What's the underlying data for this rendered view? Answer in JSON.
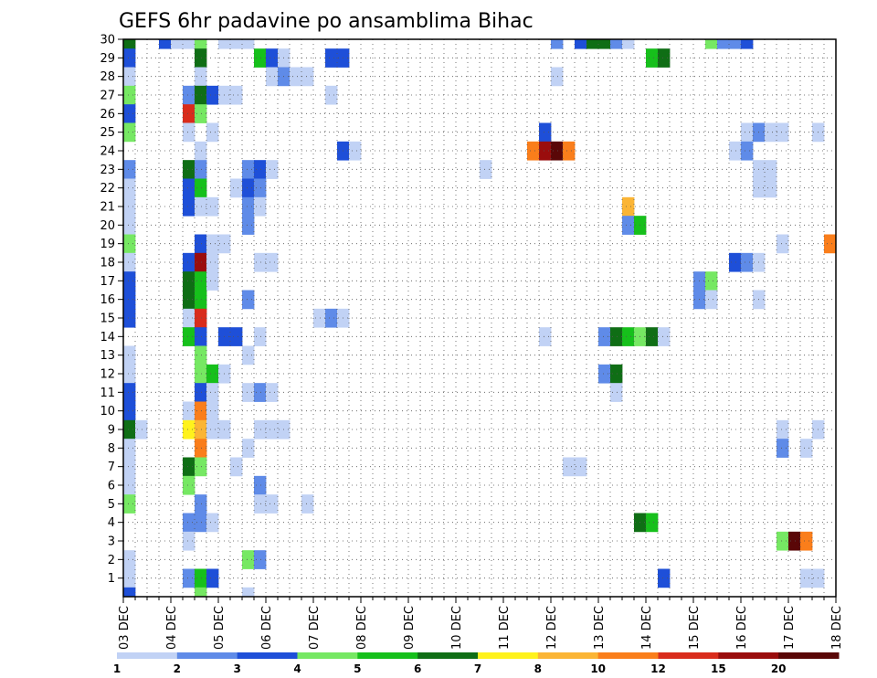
{
  "chart_data": {
    "type": "heatmap",
    "title": "GEFS 6hr padavine po ansamblima Bihac",
    "xlabel": "",
    "ylabel": "",
    "x_ticks": [
      "03 DEC",
      "04 DEC",
      "05 DEC",
      "06 DEC",
      "07 DEC",
      "08 DEC",
      "09 DEC",
      "10 DEC",
      "11 DEC",
      "12 DEC",
      "13 DEC",
      "14 DEC",
      "15 DEC",
      "16 DEC",
      "17 DEC",
      "18 DEC"
    ],
    "x_steps_per_day": 4,
    "y_ticks": [
      1,
      2,
      3,
      4,
      5,
      6,
      7,
      8,
      9,
      10,
      11,
      12,
      13,
      14,
      15,
      16,
      17,
      18,
      19,
      20,
      21,
      22,
      23,
      24,
      25,
      26,
      27,
      28,
      29,
      30
    ],
    "ylim": [
      0,
      30
    ],
    "grid": true,
    "colorbar": {
      "labels": [
        "1",
        "2",
        "3",
        "4",
        "5",
        "6",
        "7",
        "8",
        "10",
        "12",
        "15",
        "20"
      ],
      "colors": [
        "#c1d2f5",
        "#5f8be8",
        "#1e4fd8",
        "#76e863",
        "#16c01b",
        "#0f6e15",
        "#fff21c",
        "#fbb535",
        "#fa7e1b",
        "#d92c1c",
        "#9a0d0d",
        "#5a0707"
      ]
    },
    "values_note": "cells: [member, time_step_from_03DEC00, color_class_index(0-11)]",
    "cells": [
      [
        30,
        0,
        5
      ],
      [
        30,
        3,
        2
      ],
      [
        30,
        4,
        0
      ],
      [
        30,
        5,
        0
      ],
      [
        30,
        6,
        3
      ],
      [
        30,
        8,
        0
      ],
      [
        30,
        9,
        0
      ],
      [
        30,
        10,
        0
      ],
      [
        30,
        36,
        1
      ],
      [
        30,
        38,
        2
      ],
      [
        30,
        39,
        5
      ],
      [
        30,
        40,
        5
      ],
      [
        30,
        41,
        1
      ],
      [
        30,
        42,
        0
      ],
      [
        30,
        49,
        3
      ],
      [
        30,
        50,
        1
      ],
      [
        30,
        51,
        1
      ],
      [
        30,
        52,
        2
      ],
      [
        29,
        0,
        2
      ],
      [
        29,
        6,
        5
      ],
      [
        29,
        11,
        4
      ],
      [
        29,
        12,
        2
      ],
      [
        29,
        13,
        0
      ],
      [
        29,
        17,
        2
      ],
      [
        29,
        18,
        2
      ],
      [
        29,
        44,
        4
      ],
      [
        29,
        45,
        5
      ],
      [
        28,
        0,
        0
      ],
      [
        28,
        6,
        0
      ],
      [
        28,
        12,
        0
      ],
      [
        28,
        13,
        1
      ],
      [
        28,
        14,
        0
      ],
      [
        28,
        15,
        0
      ],
      [
        28,
        36,
        0
      ],
      [
        27,
        0,
        3
      ],
      [
        27,
        5,
        1
      ],
      [
        27,
        6,
        5
      ],
      [
        27,
        7,
        2
      ],
      [
        27,
        8,
        0
      ],
      [
        27,
        9,
        0
      ],
      [
        27,
        17,
        0
      ],
      [
        26,
        0,
        2
      ],
      [
        26,
        5,
        9
      ],
      [
        26,
        6,
        3
      ],
      [
        25,
        0,
        3
      ],
      [
        25,
        5,
        0
      ],
      [
        25,
        7,
        0
      ],
      [
        25,
        35,
        2
      ],
      [
        25,
        52,
        0
      ],
      [
        25,
        53,
        1
      ],
      [
        25,
        54,
        0
      ],
      [
        25,
        55,
        0
      ],
      [
        25,
        58,
        0
      ],
      [
        24,
        6,
        0
      ],
      [
        24,
        18,
        2
      ],
      [
        24,
        19,
        0
      ],
      [
        24,
        34,
        8
      ],
      [
        24,
        35,
        10
      ],
      [
        24,
        36,
        11
      ],
      [
        24,
        37,
        8
      ],
      [
        24,
        51,
        0
      ],
      [
        24,
        52,
        1
      ],
      [
        23,
        0,
        1
      ],
      [
        23,
        5,
        5
      ],
      [
        23,
        6,
        1
      ],
      [
        23,
        10,
        1
      ],
      [
        23,
        11,
        2
      ],
      [
        23,
        12,
        0
      ],
      [
        23,
        30,
        0
      ],
      [
        23,
        53,
        0
      ],
      [
        23,
        54,
        0
      ],
      [
        22,
        0,
        0
      ],
      [
        22,
        5,
        2
      ],
      [
        22,
        6,
        4
      ],
      [
        22,
        9,
        0
      ],
      [
        22,
        10,
        2
      ],
      [
        22,
        11,
        1
      ],
      [
        22,
        53,
        0
      ],
      [
        22,
        54,
        0
      ],
      [
        21,
        0,
        0
      ],
      [
        21,
        5,
        2
      ],
      [
        21,
        6,
        0
      ],
      [
        21,
        7,
        0
      ],
      [
        21,
        10,
        1
      ],
      [
        21,
        11,
        0
      ],
      [
        21,
        42,
        7
      ],
      [
        20,
        0,
        0
      ],
      [
        20,
        10,
        1
      ],
      [
        20,
        42,
        1
      ],
      [
        20,
        43,
        4
      ],
      [
        19,
        0,
        3
      ],
      [
        19,
        6,
        2
      ],
      [
        19,
        7,
        0
      ],
      [
        19,
        8,
        0
      ],
      [
        19,
        55,
        0
      ],
      [
        19,
        59,
        8
      ],
      [
        18,
        0,
        0
      ],
      [
        18,
        5,
        2
      ],
      [
        18,
        6,
        10
      ],
      [
        18,
        7,
        0
      ],
      [
        18,
        11,
        0
      ],
      [
        18,
        12,
        0
      ],
      [
        18,
        51,
        2
      ],
      [
        18,
        52,
        1
      ],
      [
        18,
        53,
        0
      ],
      [
        17,
        0,
        2
      ],
      [
        17,
        5,
        5
      ],
      [
        17,
        6,
        4
      ],
      [
        17,
        7,
        0
      ],
      [
        17,
        48,
        1
      ],
      [
        17,
        49,
        3
      ],
      [
        16,
        0,
        2
      ],
      [
        16,
        5,
        5
      ],
      [
        16,
        6,
        4
      ],
      [
        16,
        10,
        1
      ],
      [
        16,
        48,
        1
      ],
      [
        16,
        49,
        0
      ],
      [
        16,
        53,
        0
      ],
      [
        15,
        0,
        2
      ],
      [
        15,
        5,
        0
      ],
      [
        15,
        6,
        9
      ],
      [
        15,
        16,
        0
      ],
      [
        15,
        17,
        1
      ],
      [
        15,
        18,
        0
      ],
      [
        14,
        5,
        4
      ],
      [
        14,
        6,
        2
      ],
      [
        14,
        8,
        2
      ],
      [
        14,
        9,
        2
      ],
      [
        14,
        11,
        0
      ],
      [
        14,
        35,
        0
      ],
      [
        14,
        40,
        1
      ],
      [
        14,
        41,
        5
      ],
      [
        14,
        42,
        4
      ],
      [
        14,
        43,
        3
      ],
      [
        14,
        44,
        5
      ],
      [
        14,
        45,
        0
      ],
      [
        13,
        0,
        0
      ],
      [
        13,
        6,
        3
      ],
      [
        13,
        10,
        0
      ],
      [
        12,
        0,
        0
      ],
      [
        12,
        6,
        3
      ],
      [
        12,
        7,
        4
      ],
      [
        12,
        8,
        0
      ],
      [
        12,
        40,
        1
      ],
      [
        12,
        41,
        5
      ],
      [
        11,
        0,
        2
      ],
      [
        11,
        6,
        2
      ],
      [
        11,
        7,
        0
      ],
      [
        11,
        10,
        0
      ],
      [
        11,
        11,
        1
      ],
      [
        11,
        12,
        0
      ],
      [
        11,
        41,
        0
      ],
      [
        10,
        0,
        2
      ],
      [
        10,
        5,
        0
      ],
      [
        10,
        6,
        8
      ],
      [
        10,
        7,
        0
      ],
      [
        9,
        0,
        5
      ],
      [
        9,
        1,
        0
      ],
      [
        9,
        5,
        6
      ],
      [
        9,
        6,
        7
      ],
      [
        9,
        7,
        0
      ],
      [
        9,
        8,
        0
      ],
      [
        9,
        11,
        0
      ],
      [
        9,
        12,
        0
      ],
      [
        9,
        13,
        0
      ],
      [
        9,
        55,
        0
      ],
      [
        9,
        58,
        0
      ],
      [
        8,
        0,
        0
      ],
      [
        8,
        6,
        8
      ],
      [
        8,
        10,
        0
      ],
      [
        8,
        55,
        1
      ],
      [
        8,
        57,
        0
      ],
      [
        7,
        0,
        0
      ],
      [
        7,
        5,
        5
      ],
      [
        7,
        6,
        3
      ],
      [
        7,
        9,
        0
      ],
      [
        7,
        37,
        0
      ],
      [
        7,
        38,
        0
      ],
      [
        6,
        0,
        0
      ],
      [
        6,
        5,
        3
      ],
      [
        6,
        11,
        1
      ],
      [
        5,
        0,
        3
      ],
      [
        5,
        6,
        1
      ],
      [
        5,
        11,
        0
      ],
      [
        5,
        12,
        0
      ],
      [
        5,
        15,
        0
      ],
      [
        4,
        5,
        1
      ],
      [
        4,
        6,
        1
      ],
      [
        4,
        7,
        0
      ],
      [
        4,
        43,
        5
      ],
      [
        4,
        44,
        4
      ],
      [
        3,
        5,
        0
      ],
      [
        3,
        55,
        3
      ],
      [
        3,
        56,
        11
      ],
      [
        3,
        57,
        8
      ],
      [
        2,
        0,
        0
      ],
      [
        2,
        10,
        3
      ],
      [
        2,
        11,
        1
      ],
      [
        1,
        0,
        0
      ],
      [
        1,
        5,
        1
      ],
      [
        1,
        6,
        4
      ],
      [
        1,
        7,
        2
      ],
      [
        1,
        45,
        2
      ],
      [
        1,
        57,
        0
      ],
      [
        1,
        58,
        0
      ],
      [
        0,
        0,
        2
      ],
      [
        0,
        6,
        3
      ],
      [
        0,
        10,
        0
      ]
    ]
  }
}
